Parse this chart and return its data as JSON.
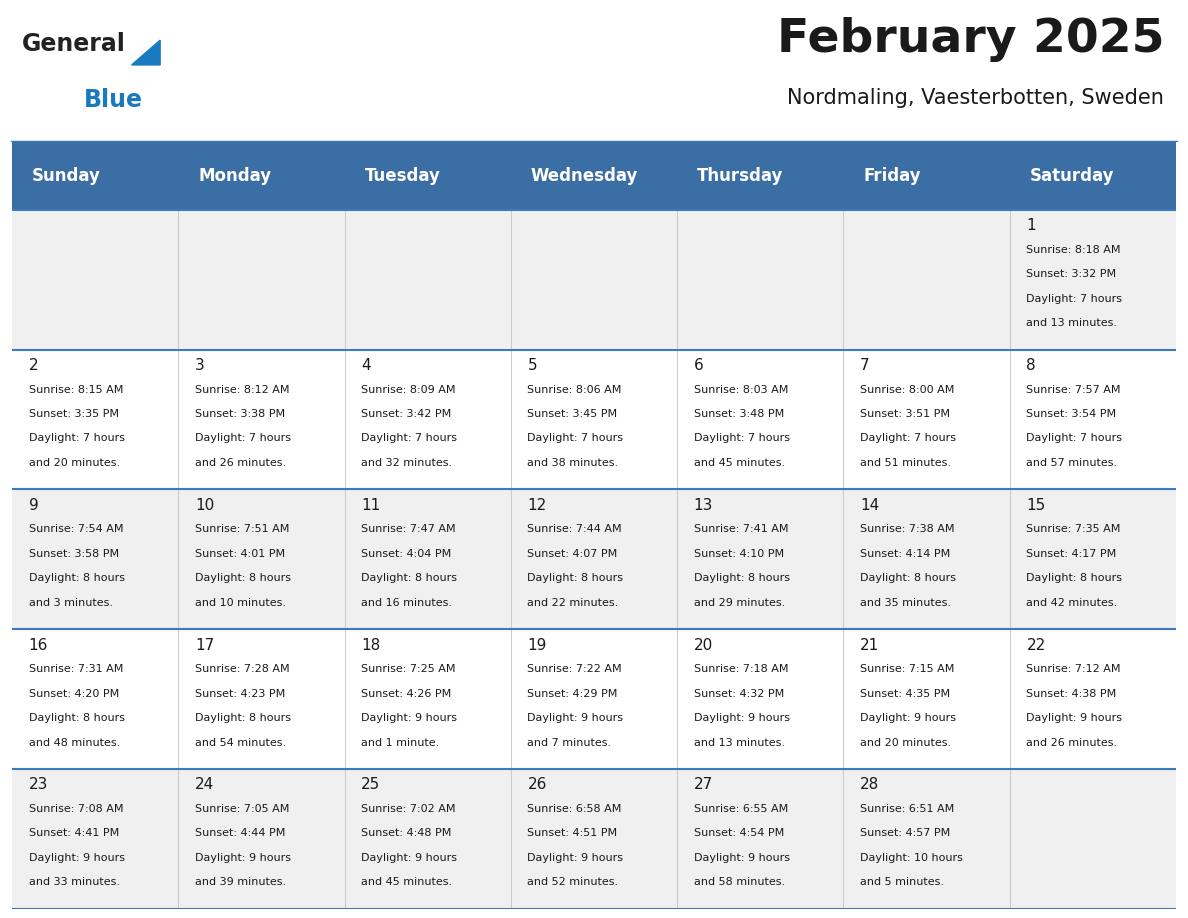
{
  "title": "February 2025",
  "subtitle": "Nordmaling, Vaesterbotten, Sweden",
  "header_bg": "#3a6ea5",
  "header_text": "#ffffff",
  "row_bg_odd": "#f0f0f0",
  "row_bg_even": "#ffffff",
  "divider_color": "#3a7abf",
  "cell_border_color": "#cccccc",
  "day_headers": [
    "Sunday",
    "Monday",
    "Tuesday",
    "Wednesday",
    "Thursday",
    "Friday",
    "Saturday"
  ],
  "days": [
    {
      "day": 1,
      "col": 6,
      "row": 0,
      "sunrise": "8:18 AM",
      "sunset": "3:32 PM",
      "daylight": "7 hours and 13 minutes."
    },
    {
      "day": 2,
      "col": 0,
      "row": 1,
      "sunrise": "8:15 AM",
      "sunset": "3:35 PM",
      "daylight": "7 hours and 20 minutes."
    },
    {
      "day": 3,
      "col": 1,
      "row": 1,
      "sunrise": "8:12 AM",
      "sunset": "3:38 PM",
      "daylight": "7 hours and 26 minutes."
    },
    {
      "day": 4,
      "col": 2,
      "row": 1,
      "sunrise": "8:09 AM",
      "sunset": "3:42 PM",
      "daylight": "7 hours and 32 minutes."
    },
    {
      "day": 5,
      "col": 3,
      "row": 1,
      "sunrise": "8:06 AM",
      "sunset": "3:45 PM",
      "daylight": "7 hours and 38 minutes."
    },
    {
      "day": 6,
      "col": 4,
      "row": 1,
      "sunrise": "8:03 AM",
      "sunset": "3:48 PM",
      "daylight": "7 hours and 45 minutes."
    },
    {
      "day": 7,
      "col": 5,
      "row": 1,
      "sunrise": "8:00 AM",
      "sunset": "3:51 PM",
      "daylight": "7 hours and 51 minutes."
    },
    {
      "day": 8,
      "col": 6,
      "row": 1,
      "sunrise": "7:57 AM",
      "sunset": "3:54 PM",
      "daylight": "7 hours and 57 minutes."
    },
    {
      "day": 9,
      "col": 0,
      "row": 2,
      "sunrise": "7:54 AM",
      "sunset": "3:58 PM",
      "daylight": "8 hours and 3 minutes."
    },
    {
      "day": 10,
      "col": 1,
      "row": 2,
      "sunrise": "7:51 AM",
      "sunset": "4:01 PM",
      "daylight": "8 hours and 10 minutes."
    },
    {
      "day": 11,
      "col": 2,
      "row": 2,
      "sunrise": "7:47 AM",
      "sunset": "4:04 PM",
      "daylight": "8 hours and 16 minutes."
    },
    {
      "day": 12,
      "col": 3,
      "row": 2,
      "sunrise": "7:44 AM",
      "sunset": "4:07 PM",
      "daylight": "8 hours and 22 minutes."
    },
    {
      "day": 13,
      "col": 4,
      "row": 2,
      "sunrise": "7:41 AM",
      "sunset": "4:10 PM",
      "daylight": "8 hours and 29 minutes."
    },
    {
      "day": 14,
      "col": 5,
      "row": 2,
      "sunrise": "7:38 AM",
      "sunset": "4:14 PM",
      "daylight": "8 hours and 35 minutes."
    },
    {
      "day": 15,
      "col": 6,
      "row": 2,
      "sunrise": "7:35 AM",
      "sunset": "4:17 PM",
      "daylight": "8 hours and 42 minutes."
    },
    {
      "day": 16,
      "col": 0,
      "row": 3,
      "sunrise": "7:31 AM",
      "sunset": "4:20 PM",
      "daylight": "8 hours and 48 minutes."
    },
    {
      "day": 17,
      "col": 1,
      "row": 3,
      "sunrise": "7:28 AM",
      "sunset": "4:23 PM",
      "daylight": "8 hours and 54 minutes."
    },
    {
      "day": 18,
      "col": 2,
      "row": 3,
      "sunrise": "7:25 AM",
      "sunset": "4:26 PM",
      "daylight": "9 hours and 1 minute."
    },
    {
      "day": 19,
      "col": 3,
      "row": 3,
      "sunrise": "7:22 AM",
      "sunset": "4:29 PM",
      "daylight": "9 hours and 7 minutes."
    },
    {
      "day": 20,
      "col": 4,
      "row": 3,
      "sunrise": "7:18 AM",
      "sunset": "4:32 PM",
      "daylight": "9 hours and 13 minutes."
    },
    {
      "day": 21,
      "col": 5,
      "row": 3,
      "sunrise": "7:15 AM",
      "sunset": "4:35 PM",
      "daylight": "9 hours and 20 minutes."
    },
    {
      "day": 22,
      "col": 6,
      "row": 3,
      "sunrise": "7:12 AM",
      "sunset": "4:38 PM",
      "daylight": "9 hours and 26 minutes."
    },
    {
      "day": 23,
      "col": 0,
      "row": 4,
      "sunrise": "7:08 AM",
      "sunset": "4:41 PM",
      "daylight": "9 hours and 33 minutes."
    },
    {
      "day": 24,
      "col": 1,
      "row": 4,
      "sunrise": "7:05 AM",
      "sunset": "4:44 PM",
      "daylight": "9 hours and 39 minutes."
    },
    {
      "day": 25,
      "col": 2,
      "row": 4,
      "sunrise": "7:02 AM",
      "sunset": "4:48 PM",
      "daylight": "9 hours and 45 minutes."
    },
    {
      "day": 26,
      "col": 3,
      "row": 4,
      "sunrise": "6:58 AM",
      "sunset": "4:51 PM",
      "daylight": "9 hours and 52 minutes."
    },
    {
      "day": 27,
      "col": 4,
      "row": 4,
      "sunrise": "6:55 AM",
      "sunset": "4:54 PM",
      "daylight": "9 hours and 58 minutes."
    },
    {
      "day": 28,
      "col": 5,
      "row": 4,
      "sunrise": "6:51 AM",
      "sunset": "4:57 PM",
      "daylight": "10 hours and 5 minutes."
    }
  ],
  "num_rows": 5,
  "num_cols": 7,
  "logo_general_color": "#222222",
  "logo_blue_color": "#1a7abf",
  "logo_triangle_color": "#1a7abf",
  "title_fontsize": 34,
  "subtitle_fontsize": 15,
  "header_fontsize": 12,
  "day_num_fontsize": 11,
  "cell_text_fontsize": 8
}
